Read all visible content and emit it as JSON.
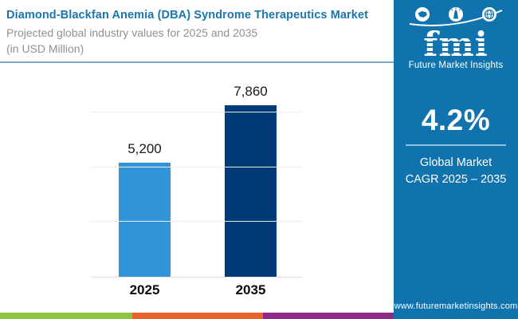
{
  "header": {
    "title": "Diamond-Blackfan Anemia (DBA) Syndrome Therapeutics Market",
    "subtitle_line1": "Projected global industry values for 2025 and 2035",
    "subtitle_line2": "(in USD Million)"
  },
  "chart_data": {
    "type": "bar",
    "title": "Diamond-Blackfan Anemia (DBA) Syndrome Therapeutics Market",
    "categories": [
      "2025",
      "2035"
    ],
    "values": [
      5200,
      7860
    ],
    "value_labels": [
      "5,200",
      "7,860"
    ],
    "unit": "USD Million",
    "xlabel": "",
    "ylabel": "",
    "ylim": [
      0,
      8500
    ],
    "gridlines": [
      2500,
      5000,
      7500
    ],
    "grid": "horizontal-only",
    "legend": "none",
    "bar_colors": [
      "#3094d6",
      "#003a77"
    ]
  },
  "sidebar": {
    "background": "#1173ae",
    "logo": {
      "brand": "fmi",
      "caption": "Future Market Insights",
      "icons": [
        "usa-map-icon",
        "statue-of-liberty-icon",
        "globe-icon"
      ]
    },
    "cagr_value": "4.2%",
    "cagr_label_line1": "Global Market",
    "cagr_label_line2": "CAGR 2025 – 2035",
    "website": "www.futuremarketinsights.com"
  },
  "footer_strip_colors": [
    "#8cc63e",
    "#e9632c",
    "#8f2a8b"
  ]
}
